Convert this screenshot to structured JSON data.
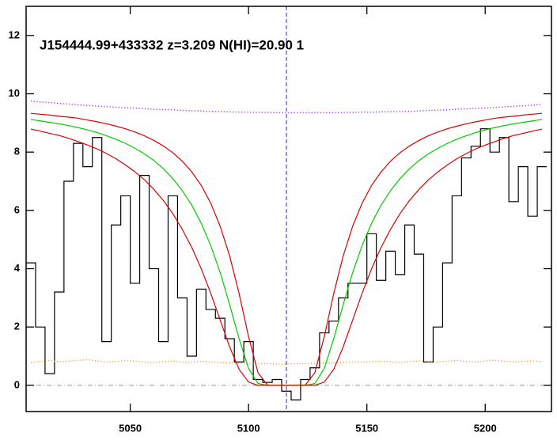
{
  "chart_data": {
    "type": "line",
    "title": "J154444.99+433332 z=3.209 N(HI)=20.90 1",
    "xlim": [
      5006,
      5228
    ],
    "ylim": [
      -0.9,
      13
    ],
    "xticks": [
      5050,
      5100,
      5150,
      5200
    ],
    "yticks": [
      0,
      2,
      4,
      6,
      8,
      10,
      12
    ],
    "vline": {
      "value": 5116,
      "color": "#2a2ab8"
    },
    "hline": {
      "value": 0,
      "color": "#999999"
    },
    "x": [
      5008,
      5012,
      5016,
      5020,
      5024,
      5028,
      5032,
      5036,
      5040,
      5044,
      5048,
      5052,
      5056,
      5060,
      5064,
      5068,
      5072,
      5076,
      5080,
      5084,
      5088,
      5092,
      5096,
      5100,
      5104,
      5108,
      5112,
      5116,
      5120,
      5124,
      5128,
      5132,
      5136,
      5140,
      5144,
      5148,
      5152,
      5156,
      5160,
      5164,
      5168,
      5172,
      5176,
      5180,
      5184,
      5188,
      5192,
      5196,
      5200,
      5204,
      5208,
      5212,
      5216,
      5220,
      5224
    ],
    "series": [
      {
        "color": "#000000",
        "style": "step",
        "values": [
          4.2,
          2.0,
          0.4,
          3.2,
          7.0,
          8.3,
          7.5,
          8.5,
          1.5,
          5.5,
          6.5,
          3.5,
          7.2,
          4.0,
          1.5,
          6.5,
          3.0,
          1.0,
          3.3,
          2.6,
          2.3,
          1.6,
          0.8,
          1.5,
          0.2,
          0.1,
          0.2,
          -0.2,
          -0.5,
          0.2,
          0.6,
          1.8,
          2.2,
          3.0,
          3.5,
          3.5,
          5.2,
          3.6,
          4.6,
          3.8,
          5.5,
          4.5,
          0.8,
          2.0,
          4.2,
          6.5,
          7.8,
          8.2,
          8.8,
          8.0,
          8.5,
          6.3,
          7.5,
          5.8,
          7.5
        ]
      },
      {
        "color": "#9a30f0",
        "style": "dotted",
        "values": [
          9.75,
          9.72,
          9.7,
          9.67,
          9.65,
          9.62,
          9.6,
          9.58,
          9.56,
          9.54,
          9.52,
          9.51,
          9.49,
          9.47,
          9.46,
          9.45,
          9.43,
          9.42,
          9.41,
          9.4,
          9.39,
          9.38,
          9.37,
          9.37,
          9.36,
          9.36,
          9.35,
          9.35,
          9.35,
          9.35,
          9.35,
          9.35,
          9.35,
          9.36,
          9.36,
          9.37,
          9.37,
          9.38,
          9.39,
          9.39,
          9.4,
          9.41,
          9.43,
          9.44,
          9.45,
          9.47,
          9.48,
          9.5,
          9.51,
          9.53,
          9.55,
          9.57,
          9.59,
          9.61,
          9.64
        ]
      },
      {
        "color": "#ff9a30",
        "style": "dotted",
        "values": [
          0.78,
          0.82,
          0.85,
          0.8,
          0.83,
          0.86,
          0.88,
          0.84,
          0.8,
          0.82,
          0.85,
          0.83,
          0.8,
          0.78,
          0.81,
          0.84,
          0.8,
          0.79,
          0.82,
          0.8,
          0.78,
          0.77,
          0.76,
          0.75,
          0.74,
          0.74,
          0.73,
          0.73,
          0.74,
          0.74,
          0.75,
          0.76,
          0.77,
          0.78,
          0.8,
          0.79,
          0.81,
          0.83,
          0.8,
          0.78,
          0.82,
          0.84,
          0.81,
          0.8,
          0.83,
          0.85,
          0.82,
          0.8,
          0.84,
          0.86,
          0.83,
          0.8,
          0.82,
          0.84,
          0.81
        ]
      },
      {
        "color": "#dd0000",
        "style": "solid",
        "values": [
          9.33,
          9.3,
          9.27,
          9.23,
          9.2,
          9.16,
          9.1,
          9.04,
          8.97,
          8.89,
          8.8,
          8.69,
          8.56,
          8.4,
          8.21,
          7.98,
          7.69,
          7.32,
          6.86,
          6.25,
          5.46,
          4.44,
          3.15,
          1.67,
          0.43,
          0.01,
          0,
          0,
          0,
          0.01,
          0.43,
          1.67,
          3.15,
          4.44,
          5.46,
          6.25,
          6.86,
          7.32,
          7.69,
          7.98,
          8.21,
          8.4,
          8.56,
          8.69,
          8.8,
          8.89,
          8.97,
          9.04,
          9.1,
          9.16,
          9.2,
          9.23,
          9.27,
          9.3,
          9.33
        ]
      },
      {
        "color": "#00cc00",
        "style": "solid",
        "values": [
          9.12,
          9.07,
          9.02,
          8.97,
          8.91,
          8.84,
          8.76,
          8.67,
          8.56,
          8.44,
          8.3,
          8.13,
          7.94,
          7.71,
          7.43,
          7.09,
          6.68,
          6.18,
          5.56,
          4.8,
          3.87,
          2.77,
          1.6,
          0.58,
          0.06,
          0,
          0,
          0,
          0,
          0,
          0.06,
          0.58,
          1.6,
          2.77,
          3.87,
          4.8,
          5.56,
          6.18,
          6.68,
          7.09,
          7.43,
          7.71,
          7.94,
          8.13,
          8.3,
          8.44,
          8.56,
          8.67,
          8.76,
          8.84,
          8.91,
          8.97,
          9.02,
          9.07,
          9.12
        ]
      },
      {
        "color": "#dd0000",
        "style": "solid",
        "values": [
          8.79,
          8.72,
          8.64,
          8.57,
          8.47,
          8.36,
          8.24,
          8.11,
          7.95,
          7.77,
          7.56,
          7.32,
          7.05,
          6.72,
          6.34,
          5.89,
          5.35,
          4.73,
          4.0,
          3.16,
          2.24,
          1.32,
          0.55,
          0.11,
          0,
          0,
          0,
          0,
          0,
          0,
          0,
          0.11,
          0.55,
          1.32,
          2.24,
          3.16,
          4.0,
          4.73,
          5.35,
          5.89,
          6.34,
          6.72,
          7.05,
          7.32,
          7.56,
          7.77,
          7.95,
          8.11,
          8.24,
          8.36,
          8.47,
          8.57,
          8.64,
          8.72,
          8.79
        ]
      }
    ]
  }
}
